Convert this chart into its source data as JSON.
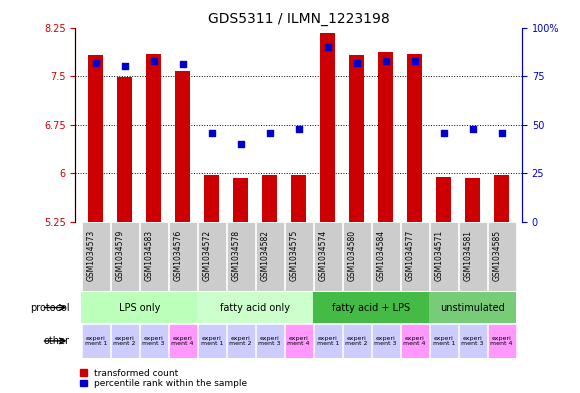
{
  "title": "GDS5311 / ILMN_1223198",
  "samples": [
    "GSM1034573",
    "GSM1034579",
    "GSM1034583",
    "GSM1034576",
    "GSM1034572",
    "GSM1034578",
    "GSM1034582",
    "GSM1034575",
    "GSM1034574",
    "GSM1034580",
    "GSM1034584",
    "GSM1034577",
    "GSM1034571",
    "GSM1034581",
    "GSM1034585"
  ],
  "transformed_count": [
    7.82,
    7.48,
    7.84,
    7.58,
    5.97,
    5.93,
    5.97,
    5.98,
    8.17,
    7.82,
    7.87,
    7.84,
    5.95,
    5.93,
    5.97
  ],
  "percentile_rank": [
    82,
    80,
    83,
    81,
    46,
    40,
    46,
    48,
    90,
    82,
    83,
    83,
    46,
    48,
    46
  ],
  "ymin": 5.25,
  "ymax": 8.25,
  "yticks": [
    5.25,
    6.0,
    6.75,
    7.5,
    8.25
  ],
  "ytick_labels": [
    "5.25",
    "6",
    "6.75",
    "7.5",
    "8.25"
  ],
  "y2min": 0,
  "y2max": 100,
  "y2ticks": [
    0,
    25,
    50,
    75,
    100
  ],
  "y2tick_labels": [
    "0",
    "25",
    "50",
    "75",
    "100%"
  ],
  "groups": [
    {
      "label": "LPS only",
      "start": 0,
      "end": 4,
      "color": "#bbffbb"
    },
    {
      "label": "fatty acid only",
      "start": 4,
      "end": 8,
      "color": "#ccffcc"
    },
    {
      "label": "fatty acid + LPS",
      "start": 8,
      "end": 12,
      "color": "#44bb44"
    },
    {
      "label": "unstimulated",
      "start": 12,
      "end": 15,
      "color": "#77cc77"
    }
  ],
  "other_labels": [
    "experi\nment 1",
    "experi\nment 2",
    "experi\nment 3",
    "experi\nment 4",
    "experi\nment 1",
    "experi\nment 2",
    "experi\nment 3",
    "experi\nment 4",
    "experi\nment 1",
    "experi\nment 2",
    "experi\nment 3",
    "experi\nment 4",
    "experi\nment 1",
    "experi\nment 3",
    "experi\nment 4"
  ],
  "other_colors": [
    "#ccccff",
    "#ccccff",
    "#ccccff",
    "#ff99ff",
    "#ccccff",
    "#ccccff",
    "#ccccff",
    "#ff99ff",
    "#ccccff",
    "#ccccff",
    "#ccccff",
    "#ff99ff",
    "#ccccff",
    "#ccccff",
    "#ff99ff"
  ],
  "bar_color": "#cc0000",
  "dot_color": "#0000cc",
  "bg_color": "#ffffff",
  "axis_color_left": "#cc0000",
  "axis_color_right": "#0000cc",
  "title_fontsize": 10,
  "tick_fontsize": 7,
  "sample_fontsize": 5.5,
  "group_fontsize": 7,
  "other_fontsize": 4.5,
  "legend_fontsize": 6.5,
  "grid_yticks": [
    6.0,
    6.75,
    7.5
  ]
}
